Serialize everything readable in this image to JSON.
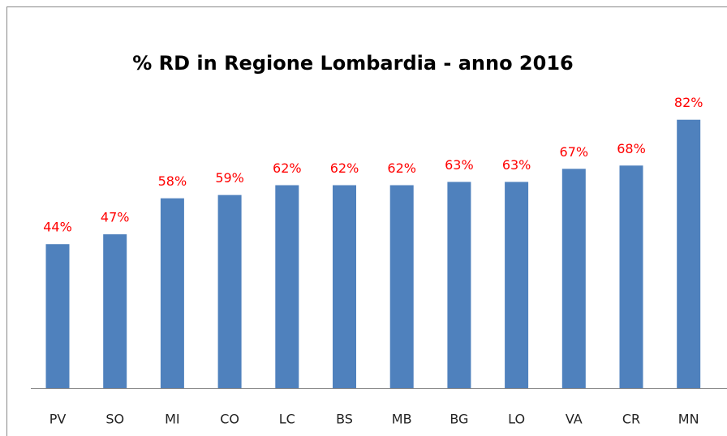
{
  "chart_data": {
    "type": "bar",
    "title": "% RD in Regione Lombardia - anno 2016",
    "categories": [
      "PV",
      "SO",
      "MI",
      "CO",
      "LC",
      "BS",
      "MB",
      "BG",
      "LO",
      "VA",
      "CR",
      "MN"
    ],
    "values": [
      44,
      47,
      58,
      59,
      62,
      62,
      62,
      63,
      63,
      67,
      68,
      82
    ],
    "value_labels": [
      "44%",
      "47%",
      "58%",
      "59%",
      "62%",
      "62%",
      "62%",
      "63%",
      "63%",
      "67%",
      "68%",
      "82%"
    ],
    "color": "#4f81bd",
    "label_color": "#ff0000"
  }
}
